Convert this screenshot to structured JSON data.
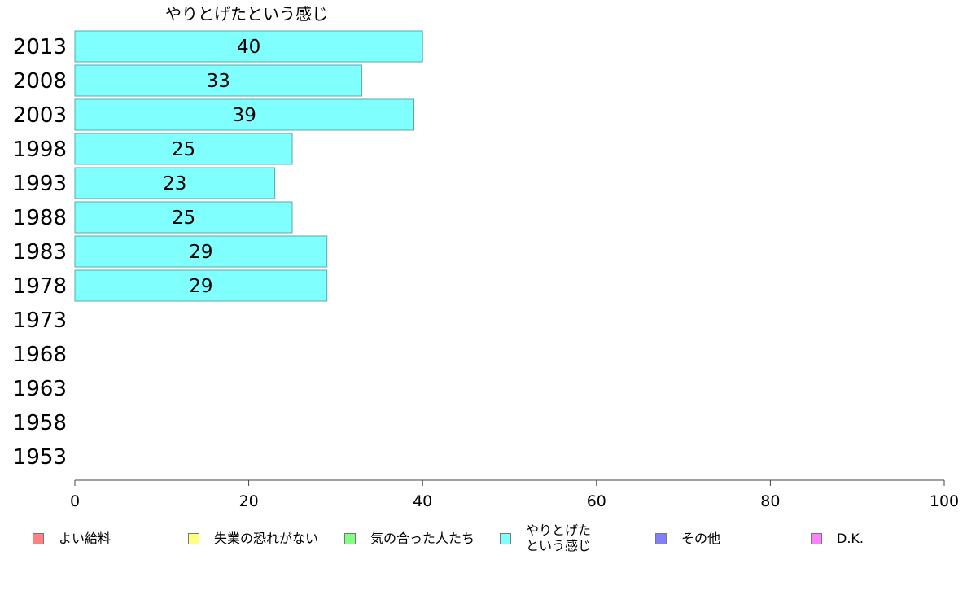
{
  "chart_data": {
    "type": "bar",
    "orientation": "horizontal",
    "title": "やりとげたという感じ",
    "categories": [
      "2013",
      "2008",
      "2003",
      "1998",
      "1993",
      "1988",
      "1983",
      "1978",
      "1973",
      "1968",
      "1963",
      "1958",
      "1953"
    ],
    "series": [
      {
        "name": "やりとげたという感じ",
        "color": "#80ffff",
        "values": [
          40,
          33,
          39,
          25,
          23,
          25,
          29,
          29,
          null,
          null,
          null,
          null,
          null
        ]
      }
    ],
    "xlim": [
      0,
      100
    ],
    "xticks": [
      "0",
      "20",
      "40",
      "60",
      "80",
      "100"
    ],
    "grid": false,
    "legend_position": "bottom"
  },
  "legend": {
    "items": [
      {
        "label": "よい給料",
        "color": "#ff8080"
      },
      {
        "label": "失業の恐れがない",
        "color": "#ffff80"
      },
      {
        "label": "気の合った人たち",
        "color": "#80ff80"
      },
      {
        "label": "やりとげた\nという感じ",
        "color": "#80ffff"
      },
      {
        "label": "その他",
        "color": "#8080ff"
      },
      {
        "label": "D.K.",
        "color": "#ff80ff"
      }
    ]
  }
}
